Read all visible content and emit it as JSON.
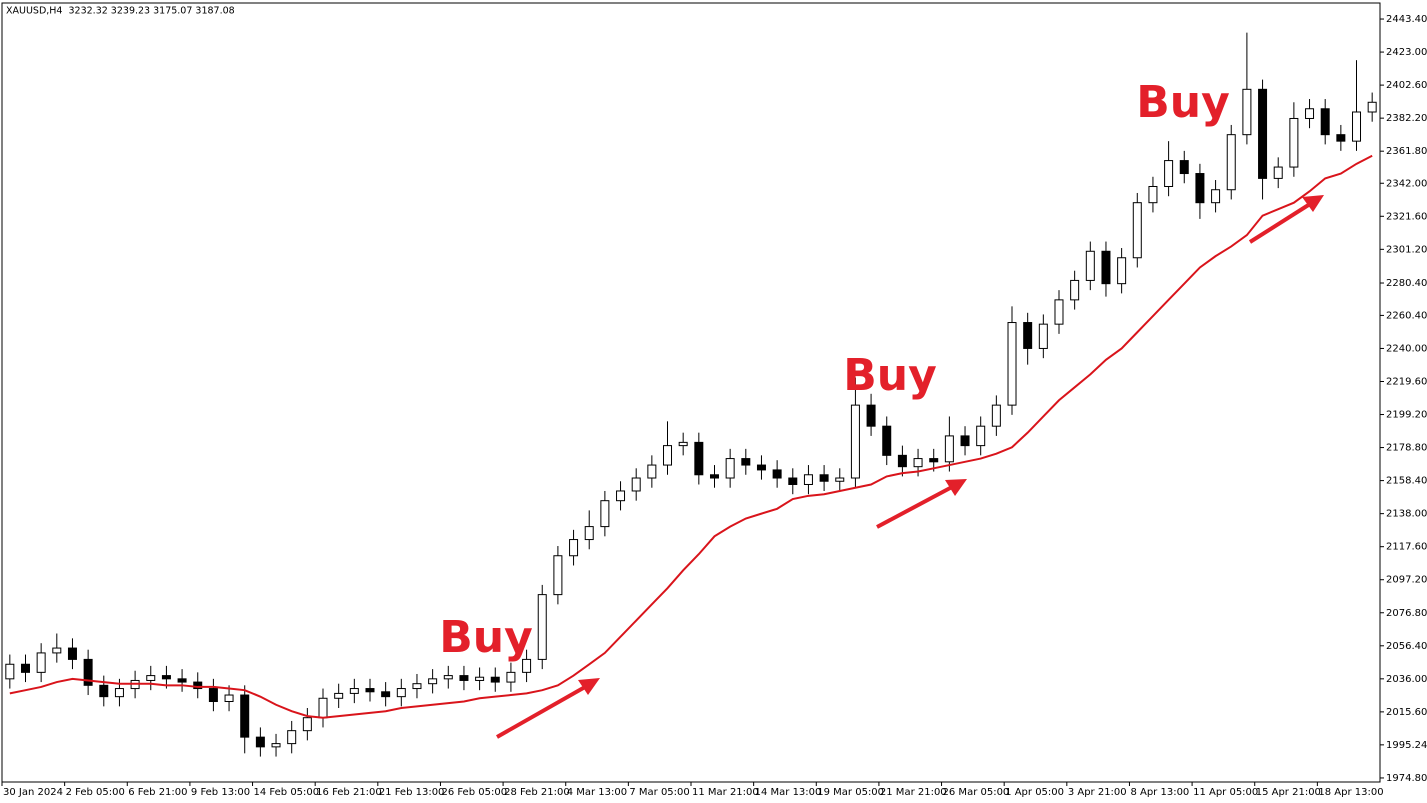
{
  "chart_data": {
    "type": "candlestick",
    "title": "XAUUSD,H4  3232.32 3239.23 3175.07 3187.08",
    "categories": [
      "30 Jan 2024",
      null,
      null,
      null,
      "2 Feb 05:00",
      null,
      null,
      null,
      "6 Feb 21:00",
      null,
      null,
      null,
      "9 Feb 13:00",
      null,
      null,
      null,
      "14 Feb 05:00",
      null,
      null,
      null,
      "16 Feb 21:00",
      null,
      null,
      null,
      "21 Feb 13:00",
      null,
      null,
      null,
      "26 Feb 05:00",
      null,
      null,
      null,
      "28 Feb 21:00",
      null,
      null,
      null,
      "4 Mar 13:00",
      null,
      null,
      null,
      "7 Mar 05:00",
      null,
      null,
      null,
      "11 Mar 21:00",
      null,
      null,
      null,
      "14 Mar 13:00",
      null,
      null,
      null,
      "19 Mar 05:00",
      null,
      null,
      null,
      "21 Mar 21:00",
      null,
      null,
      null,
      "26 Mar 05:00",
      null,
      null,
      null,
      "1 Apr 05:00",
      null,
      null,
      null,
      "3 Apr 21:00",
      null,
      null,
      null,
      "8 Apr 13:00",
      null,
      null,
      null,
      "11 Apr 05:00",
      null,
      null,
      null,
      "15 Apr 21:00",
      null,
      null,
      null,
      "18 Apr 13:00",
      null,
      null,
      null
    ],
    "open": [
      2036,
      2045,
      2040,
      2052,
      2055,
      2048,
      2032,
      2025,
      2030,
      2035,
      2038,
      2036,
      2034,
      2030,
      2022,
      2026,
      2000,
      1994,
      1996,
      2004,
      2012,
      2024,
      2027,
      2030,
      2028,
      2025,
      2030,
      2033,
      2036,
      2038,
      2035,
      2037,
      2034,
      2040,
      2048,
      2088,
      2112,
      2122,
      2130,
      2146,
      2152,
      2160,
      2168,
      2180,
      2182,
      2162,
      2160,
      2172,
      2168,
      2165,
      2160,
      2156,
      2162,
      2158,
      2160,
      2205,
      2192,
      2174,
      2167,
      2172,
      2170,
      2186,
      2180,
      2192,
      2205,
      2256,
      2240,
      2255,
      2270,
      2282,
      2300,
      2280,
      2296,
      2330,
      2340,
      2356,
      2348,
      2330,
      2338,
      2372,
      2400,
      2345,
      2352,
      2382,
      2388,
      2372,
      2368,
      2386
    ],
    "high": [
      2051,
      2051,
      2058,
      2064,
      2061,
      2054,
      2038,
      2036,
      2041,
      2044,
      2044,
      2042,
      2040,
      2036,
      2032,
      2032,
      2006,
      2002,
      2010,
      2018,
      2030,
      2033,
      2036,
      2036,
      2034,
      2036,
      2039,
      2042,
      2044,
      2044,
      2043,
      2043,
      2046,
      2054,
      2094,
      2118,
      2128,
      2140,
      2152,
      2158,
      2166,
      2174,
      2195,
      2188,
      2188,
      2168,
      2178,
      2178,
      2174,
      2171,
      2166,
      2168,
      2168,
      2166,
      2222,
      2212,
      2198,
      2180,
      2178,
      2178,
      2198,
      2192,
      2198,
      2211,
      2266,
      2262,
      2261,
      2276,
      2288,
      2306,
      2306,
      2302,
      2336,
      2346,
      2368,
      2362,
      2354,
      2344,
      2378,
      2435,
      2406,
      2358,
      2392,
      2394,
      2394,
      2378,
      2418,
      2398
    ],
    "low": [
      2030,
      2034,
      2034,
      2046,
      2042,
      2026,
      2019,
      2019,
      2024,
      2029,
      2030,
      2028,
      2024,
      2016,
      2016,
      1990,
      1988,
      1988,
      1990,
      1998,
      2006,
      2018,
      2021,
      2022,
      2019,
      2019,
      2024,
      2027,
      2030,
      2029,
      2029,
      2028,
      2028,
      2034,
      2042,
      2082,
      2106,
      2116,
      2124,
      2140,
      2146,
      2154,
      2162,
      2174,
      2156,
      2154,
      2154,
      2162,
      2159,
      2154,
      2150,
      2150,
      2152,
      2152,
      2154,
      2186,
      2168,
      2161,
      2161,
      2164,
      2164,
      2174,
      2174,
      2186,
      2199,
      2230,
      2234,
      2249,
      2264,
      2276,
      2272,
      2274,
      2290,
      2324,
      2334,
      2342,
      2320,
      2324,
      2332,
      2366,
      2332,
      2339,
      2346,
      2376,
      2366,
      2362,
      2362,
      2380
    ],
    "close": [
      2045,
      2040,
      2052,
      2055,
      2048,
      2032,
      2025,
      2030,
      2035,
      2038,
      2036,
      2034,
      2030,
      2022,
      2026,
      2000,
      1994,
      1996,
      2004,
      2012,
      2024,
      2027,
      2030,
      2028,
      2025,
      2030,
      2033,
      2036,
      2038,
      2035,
      2037,
      2034,
      2040,
      2048,
      2088,
      2112,
      2122,
      2130,
      2146,
      2152,
      2160,
      2168,
      2180,
      2182,
      2162,
      2160,
      2172,
      2168,
      2165,
      2160,
      2156,
      2162,
      2158,
      2160,
      2205,
      2192,
      2174,
      2167,
      2172,
      2170,
      2186,
      2180,
      2192,
      2205,
      2256,
      2240,
      2255,
      2270,
      2282,
      2300,
      2280,
      2296,
      2330,
      2340,
      2356,
      2348,
      2330,
      2338,
      2372,
      2400,
      2345,
      2352,
      2382,
      2388,
      2372,
      2368,
      2386,
      2392
    ],
    "up_color": "#ffffff",
    "down_color": "#000000",
    "moving_average": {
      "color": "#d9141b",
      "values": [
        2027,
        2029,
        2031,
        2034,
        2036,
        2035,
        2034,
        2033,
        2033,
        2033,
        2032,
        2032,
        2031,
        2031,
        2030,
        2029,
        2025,
        2020,
        2016,
        2013,
        2012,
        2013,
        2014,
        2015,
        2016,
        2018,
        2019,
        2020,
        2021,
        2022,
        2024,
        2025,
        2026,
        2027,
        2029,
        2032,
        2038,
        2045,
        2052,
        2062,
        2072,
        2082,
        2092,
        2103,
        2113,
        2124,
        2130,
        2135,
        2138,
        2141,
        2147,
        2149,
        2150,
        2152,
        2154,
        2156,
        2161,
        2163,
        2164,
        2166,
        2168,
        2170,
        2172,
        2175,
        2179,
        2188,
        2198,
        2208,
        2216,
        2224,
        2233,
        2240,
        2250,
        2260,
        2270,
        2280,
        2290,
        2297,
        2303,
        2310,
        2322,
        2326,
        2330,
        2337,
        2345,
        2348,
        2354,
        2359
      ]
    },
    "annotations": [
      "Buy",
      "Buy",
      "Buy"
    ],
    "annotation_color": "#e3202a",
    "ylim": [
      1972.3,
      2453.3
    ],
    "yticks": [
      {
        "value": 1974.8,
        "label": "1974.80"
      },
      {
        "value": 1995.24,
        "label": "1995.24"
      },
      {
        "value": 2015.6,
        "label": "2015.60"
      },
      {
        "value": 2036,
        "label": "2036.00"
      },
      {
        "value": 2056.4,
        "label": "2056.40"
      },
      {
        "value": 2076.8,
        "label": "2076.80"
      },
      {
        "value": 2097.2,
        "label": "2097.20"
      },
      {
        "value": 2117.6,
        "label": "2117.60"
      },
      {
        "value": 2138,
        "label": "2138.00"
      },
      {
        "value": 2158.4,
        "label": "2158.40"
      },
      {
        "value": 2178.8,
        "label": "2178.80"
      },
      {
        "value": 2199.2,
        "label": "2199.20"
      },
      {
        "value": 2219.6,
        "label": "2219.60"
      },
      {
        "value": 2240,
        "label": "2240.00"
      },
      {
        "value": 2260.4,
        "label": "2260.40"
      },
      {
        "value": 2280.4,
        "label": "2280.40"
      },
      {
        "value": 2301.2,
        "label": "2301.20"
      },
      {
        "value": 2321.6,
        "label": "2321.60"
      },
      {
        "value": 2342,
        "label": "2342.00"
      },
      {
        "value": 2361.8,
        "label": "2361.80"
      },
      {
        "value": 2382.2,
        "label": "2382.20"
      },
      {
        "value": 2402.6,
        "label": "2402.60"
      },
      {
        "value": 2423,
        "label": "2423.00"
      },
      {
        "value": 2443.4,
        "label": "2443.40"
      }
    ],
    "grid": false
  }
}
